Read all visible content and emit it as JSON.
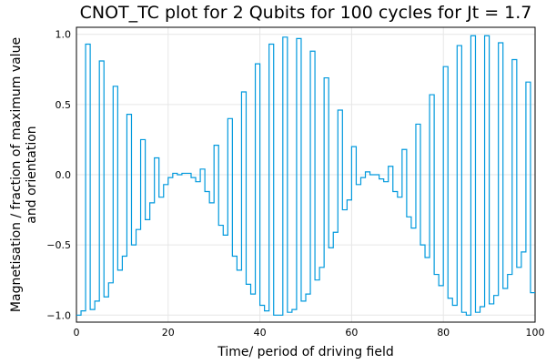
{
  "chart_data": {
    "type": "line",
    "step": true,
    "title": "CNOT_TC plot for 2 Qubits for 100 cycles for Jt = 1.7",
    "xlabel": "Time/ period of driving field",
    "ylabel": [
      "Magnetisation / fraction of maximum value",
      "and orientation"
    ],
    "xlim": [
      0,
      100
    ],
    "ylim": [
      -1.05,
      1.05
    ],
    "xticks": [
      0,
      20,
      40,
      60,
      80,
      100
    ],
    "yticks": [
      -1.0,
      -0.5,
      0.0,
      0.5,
      1.0
    ],
    "yticklabels": [
      "−1.0",
      "−0.5",
      "0.0",
      "0.5",
      "1.0"
    ],
    "grid": true,
    "legend": "none",
    "color": "#0099dd",
    "series": [
      {
        "name": "",
        "x": [
          0,
          1,
          2,
          3,
          4,
          5,
          6,
          7,
          8,
          9,
          10,
          11,
          12,
          13,
          14,
          15,
          16,
          17,
          18,
          19,
          20,
          21,
          22,
          23,
          24,
          25,
          26,
          27,
          28,
          29,
          30,
          31,
          32,
          33,
          34,
          35,
          36,
          37,
          38,
          39,
          40,
          41,
          42,
          43,
          44,
          45,
          46,
          47,
          48,
          49,
          50,
          51,
          52,
          53,
          54,
          55,
          56,
          57,
          58,
          59,
          60,
          61,
          62,
          63,
          64,
          65,
          66,
          67,
          68,
          69,
          70,
          71,
          72,
          73,
          74,
          75,
          76,
          77,
          78,
          79,
          80,
          81,
          82,
          83,
          84,
          85,
          86,
          87,
          88,
          89,
          90,
          91,
          92,
          93,
          94,
          95,
          96,
          97,
          98,
          99,
          100
        ],
        "y": [
          -1.0,
          -0.97,
          0.93,
          -0.96,
          -0.9,
          0.81,
          -0.87,
          -0.77,
          0.63,
          -0.68,
          -0.58,
          0.43,
          -0.5,
          -0.39,
          0.25,
          -0.32,
          -0.2,
          0.12,
          -0.16,
          -0.07,
          -0.02,
          0.01,
          0.0,
          0.01,
          0.01,
          -0.02,
          -0.05,
          0.04,
          -0.12,
          -0.2,
          0.21,
          -0.36,
          -0.43,
          0.4,
          -0.58,
          -0.68,
          0.59,
          -0.78,
          -0.85,
          0.79,
          -0.93,
          -0.97,
          0.93,
          -1.0,
          -1.0,
          0.98,
          -0.98,
          -0.96,
          0.97,
          -0.9,
          -0.85,
          0.88,
          -0.75,
          -0.66,
          0.69,
          -0.52,
          -0.41,
          0.46,
          -0.25,
          -0.18,
          0.2,
          -0.07,
          -0.02,
          0.02,
          0.0,
          0.0,
          -0.03,
          -0.05,
          0.06,
          -0.12,
          -0.16,
          0.18,
          -0.3,
          -0.38,
          0.36,
          -0.5,
          -0.59,
          0.57,
          -0.71,
          -0.79,
          0.77,
          -0.88,
          -0.93,
          0.92,
          -0.98,
          -1.0,
          0.99,
          -0.98,
          -0.94,
          0.99,
          -0.92,
          -0.86,
          0.94,
          -0.81,
          -0.71,
          0.82,
          -0.66,
          -0.55,
          0.66,
          -0.84,
          -0.84
        ]
      }
    ]
  }
}
